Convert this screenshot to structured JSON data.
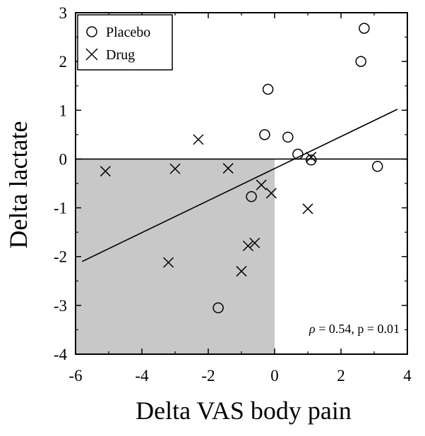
{
  "chart_data": {
    "type": "scatter",
    "xlabel": "Delta VAS body pain",
    "ylabel": "Delta lactate",
    "xlim": [
      -6,
      4
    ],
    "ylim": [
      -4,
      3
    ],
    "xticks": [
      -6,
      -4,
      -2,
      0,
      2,
      4
    ],
    "yticks": [
      -4,
      -3,
      -2,
      -1,
      0,
      1,
      2,
      3
    ],
    "xtick_labels": [
      "-6",
      "-4",
      "-2",
      "0",
      "2",
      "4"
    ],
    "ytick_labels": [
      "-4",
      "-3",
      "-2",
      "-1",
      "0",
      "1",
      "2",
      "3"
    ],
    "grid": false,
    "legend_position": "top-left",
    "series": [
      {
        "name": "Placebo",
        "marker": "open-circle",
        "points": [
          {
            "x": 2.7,
            "y": 2.68
          },
          {
            "x": 2.6,
            "y": 2.0
          },
          {
            "x": -0.2,
            "y": 1.43
          },
          {
            "x": -0.3,
            "y": 0.5
          },
          {
            "x": 0.4,
            "y": 0.45
          },
          {
            "x": 0.7,
            "y": 0.1
          },
          {
            "x": 1.1,
            "y": -0.02
          },
          {
            "x": 3.1,
            "y": -0.15
          },
          {
            "x": -0.7,
            "y": -0.77
          },
          {
            "x": -1.7,
            "y": -3.05
          }
        ]
      },
      {
        "name": "Drug",
        "marker": "x",
        "points": [
          {
            "x": -5.1,
            "y": -0.25
          },
          {
            "x": -3.0,
            "y": -0.2
          },
          {
            "x": -2.3,
            "y": 0.4
          },
          {
            "x": -1.4,
            "y": -0.19
          },
          {
            "x": -0.4,
            "y": -0.53
          },
          {
            "x": -0.1,
            "y": -0.7
          },
          {
            "x": 1.1,
            "y": 0.04
          },
          {
            "x": 1.0,
            "y": -1.02
          },
          {
            "x": -0.6,
            "y": -1.72
          },
          {
            "x": -0.8,
            "y": -1.78
          },
          {
            "x": -1.0,
            "y": -2.3
          },
          {
            "x": -3.2,
            "y": -2.12
          }
        ]
      }
    ],
    "regression_line": {
      "x": [
        -5.8,
        3.7
      ],
      "y": [
        -2.1,
        1.02
      ]
    },
    "reference_line_y": 0,
    "shaded_region": {
      "x": [
        -6,
        0
      ],
      "y": [
        -4,
        0
      ]
    },
    "annotation": {
      "rho_symbol": "ρ",
      "text": " = 0.54, p = 0.01"
    },
    "colors": {
      "shade": "#c8c8c8",
      "ink": "#000000"
    }
  }
}
